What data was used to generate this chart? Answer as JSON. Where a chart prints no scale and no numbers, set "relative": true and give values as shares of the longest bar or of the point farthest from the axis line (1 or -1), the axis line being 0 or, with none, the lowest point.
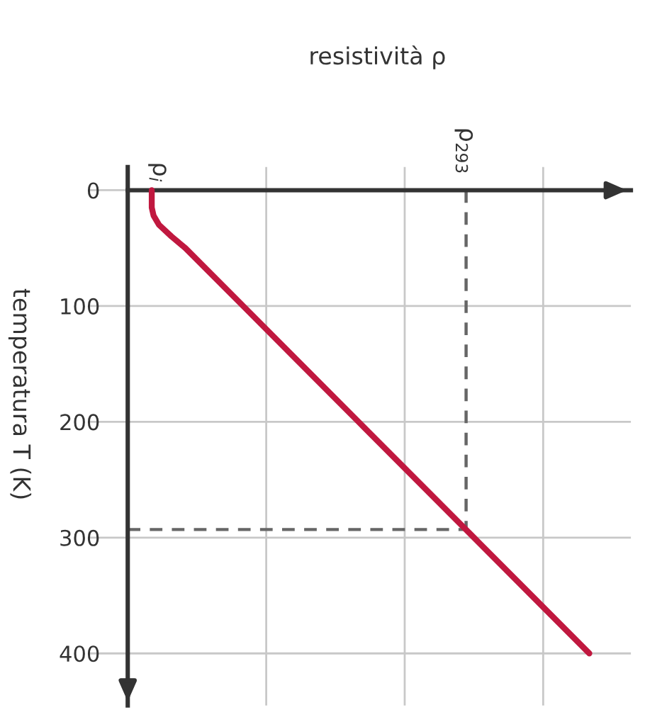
{
  "chart_data": {
    "type": "line",
    "orientation": "horizontal",
    "xlabel": "resistività ρ",
    "ylabel": "temperatura T (K)",
    "relative": true,
    "x": [
      0,
      15,
      22,
      30,
      40,
      50,
      100,
      200,
      300,
      400
    ],
    "series": [
      {
        "color": "#c0183f",
        "values": [
          0.052,
          0.052,
          0.056,
          0.068,
          0.095,
          0.125,
          0.25,
          0.5,
          0.75,
          1.0
        ]
      }
    ],
    "ylim": [
      445,
      -20
    ],
    "yticks": [
      0,
      100,
      200,
      300,
      400
    ],
    "ref_lines": [
      {
        "axis": "y",
        "value": 293,
        "color": "#666666",
        "line_style": "dashed"
      },
      {
        "axis": "x",
        "value": 0.733,
        "label": "ρ$_{293}$",
        "color": "#666666",
        "line_style": "dashed"
      }
    ],
    "annotations": [
      "ρ$_{i}$"
    ],
    "grid": true,
    "marker": "none",
    "line_style": "solid"
  }
}
